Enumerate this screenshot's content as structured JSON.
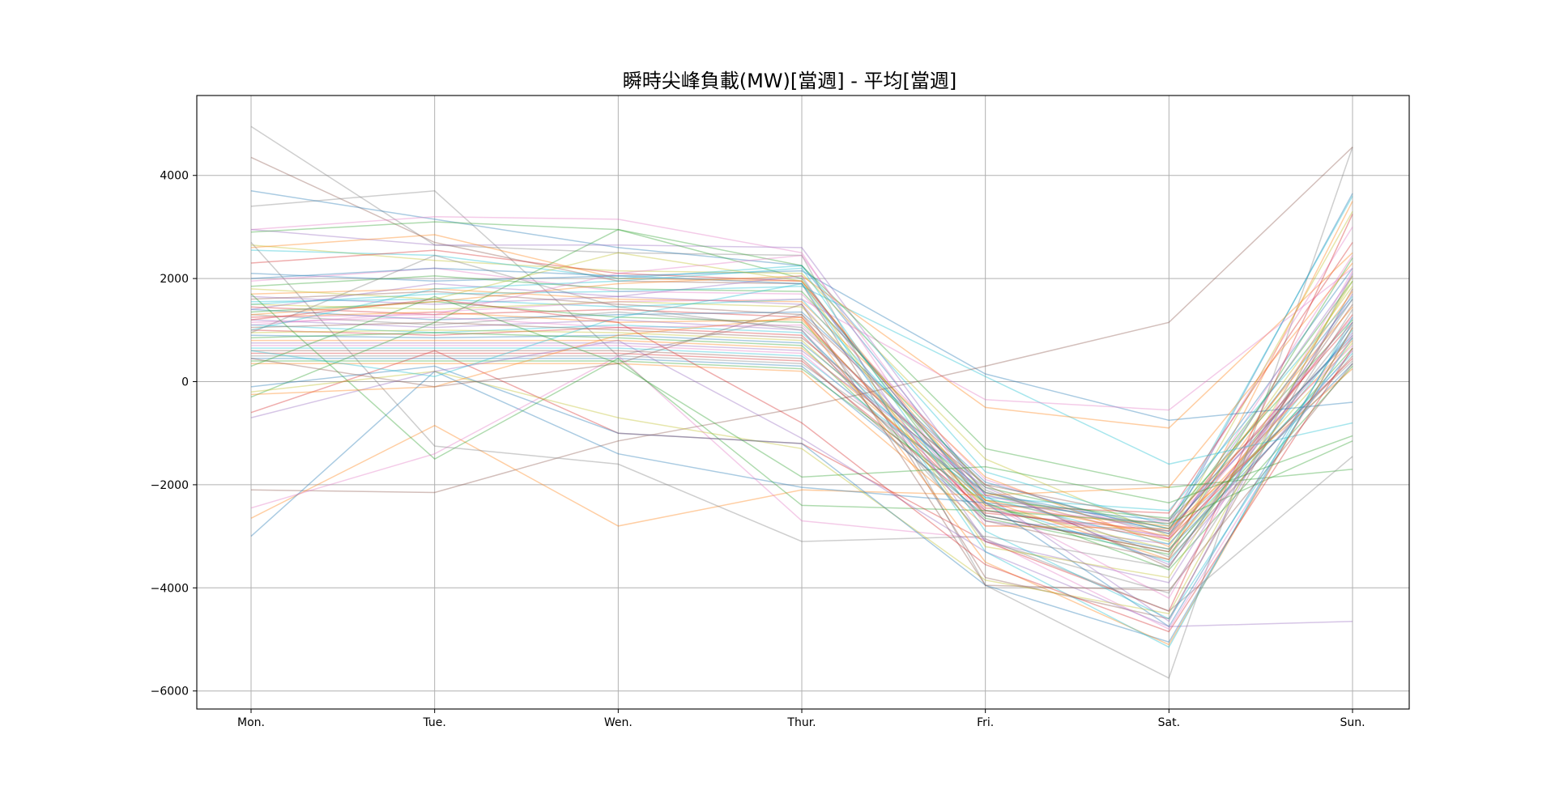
{
  "chart_data": {
    "type": "line",
    "title": "瞬時尖峰負載(MW)[當週] - 平均[當週]",
    "xlabel": "",
    "ylabel": "",
    "categories": [
      "Mon.",
      "Tue.",
      "Wen.",
      "Thur.",
      "Fri.",
      "Sat.",
      "Sun."
    ],
    "ylim": [
      -6350,
      5550
    ],
    "yticks": [
      4000,
      2000,
      0,
      -2000,
      -4000,
      -6000
    ],
    "ytick_labels": [
      "4000",
      "2000",
      "0",
      "−2000",
      "−4000",
      "−6000"
    ],
    "grid": true,
    "legend": "none",
    "series": [
      {
        "color": "#7f7f7f",
        "values": [
          4950,
          2650,
          2500,
          2450,
          -3950,
          -5750,
          4550
        ]
      },
      {
        "color": "#8c564b",
        "values": [
          4350,
          2700,
          1950,
          1900,
          -3800,
          -4600,
          1800
        ]
      },
      {
        "color": "#7f7f7f",
        "values": [
          3400,
          3700,
          500,
          1300,
          -3100,
          -4100,
          1400
        ]
      },
      {
        "color": "#1f77b4",
        "values": [
          3700,
          3150,
          2600,
          2250,
          -2200,
          -2900,
          3650
        ]
      },
      {
        "color": "#e377c2",
        "values": [
          2950,
          3200,
          3150,
          2500,
          -2800,
          -2700,
          3000
        ]
      },
      {
        "color": "#9467bd",
        "values": [
          2950,
          2650,
          2650,
          2600,
          -2200,
          -4650,
          2100
        ]
      },
      {
        "color": "#2ca02c",
        "values": [
          2900,
          3100,
          2950,
          2000,
          -2600,
          -3300,
          2400
        ]
      },
      {
        "color": "#bcbd22",
        "values": [
          2650,
          2350,
          2150,
          2100,
          -1500,
          -3000,
          3300
        ]
      },
      {
        "color": "#ff7f0e",
        "values": [
          2600,
          2850,
          2000,
          1950,
          -2300,
          -3450,
          3500
        ]
      },
      {
        "color": "#17becf",
        "values": [
          2550,
          2450,
          2000,
          2250,
          -1750,
          -2800,
          3600
        ]
      },
      {
        "color": "#d62728",
        "values": [
          2300,
          2550,
          2100,
          1950,
          -2400,
          -2550,
          2700
        ]
      },
      {
        "color": "#1f77b4",
        "values": [
          2100,
          1950,
          2050,
          1900,
          -2350,
          -2700,
          2200
        ]
      },
      {
        "color": "#e377c2",
        "values": [
          1950,
          2200,
          1750,
          1700,
          -1900,
          -3050,
          2450
        ]
      },
      {
        "color": "#2ca02c",
        "values": [
          1850,
          2050,
          1800,
          1750,
          -2050,
          -2850,
          1950
        ]
      },
      {
        "color": "#ff7f0e",
        "values": [
          1700,
          1800,
          1600,
          1550,
          -1850,
          -3200,
          1750
        ]
      },
      {
        "color": "#9467bd",
        "values": [
          1650,
          1500,
          1650,
          1500,
          -2500,
          -3000,
          2050
        ]
      },
      {
        "color": "#8c564b",
        "values": [
          1600,
          1750,
          1500,
          1300,
          -2000,
          -3600,
          1500
        ]
      },
      {
        "color": "#17becf",
        "values": [
          1550,
          1600,
          1450,
          1600,
          -2250,
          -2500,
          1650
        ]
      },
      {
        "color": "#bcbd22",
        "values": [
          1500,
          1400,
          1550,
          1450,
          -2150,
          -3100,
          1850
        ]
      },
      {
        "color": "#d62728",
        "values": [
          1450,
          1300,
          1400,
          1250,
          -2600,
          -3300,
          1300
        ]
      },
      {
        "color": "#1f77b4",
        "values": [
          1400,
          1200,
          1300,
          1350,
          -1950,
          -2950,
          1600
        ]
      },
      {
        "color": "#2ca02c",
        "values": [
          1350,
          1550,
          1250,
          1150,
          -2300,
          -2650,
          1200
        ]
      },
      {
        "color": "#7f7f7f",
        "values": [
          1300,
          1100,
          1350,
          1050,
          -2100,
          -3400,
          1100
        ]
      },
      {
        "color": "#ff7f0e",
        "values": [
          1250,
          1350,
          1150,
          1200,
          -2450,
          -2800,
          1450
        ]
      },
      {
        "color": "#9467bd",
        "values": [
          1200,
          1050,
          1200,
          1000,
          -2700,
          -3150,
          950
        ]
      },
      {
        "color": "#e377c2",
        "values": [
          1150,
          1250,
          1050,
          1100,
          -2200,
          -3050,
          1250
        ]
      },
      {
        "color": "#17becf",
        "values": [
          1100,
          950,
          1100,
          950,
          -2350,
          -3500,
          1000
        ]
      },
      {
        "color": "#8c564b",
        "values": [
          1050,
          1150,
          1000,
          850,
          -2000,
          -2700,
          850
        ]
      },
      {
        "color": "#d62728",
        "values": [
          1000,
          900,
          1050,
          900,
          -2550,
          -2900,
          1150
        ]
      },
      {
        "color": "#bcbd22",
        "values": [
          950,
          1000,
          950,
          800,
          -2400,
          -3250,
          750
        ]
      },
      {
        "color": "#1f77b4",
        "values": [
          900,
          850,
          900,
          750,
          -2150,
          -2850,
          900
        ]
      },
      {
        "color": "#2ca02c",
        "values": [
          850,
          950,
          850,
          700,
          -2650,
          -3350,
          650
        ]
      },
      {
        "color": "#ff7f0e",
        "values": [
          800,
          800,
          800,
          650,
          -2300,
          -3000,
          800
        ]
      },
      {
        "color": "#9467bd",
        "values": [
          750,
          750,
          750,
          600,
          -2050,
          -3550,
          600
        ]
      },
      {
        "color": "#e377c2",
        "values": [
          700,
          700,
          700,
          550,
          -2450,
          -2750,
          700
        ]
      },
      {
        "color": "#17becf",
        "values": [
          650,
          650,
          650,
          500,
          -2250,
          -3150,
          550
        ]
      },
      {
        "color": "#8c564b",
        "values": [
          600,
          600,
          600,
          450,
          -2700,
          -3450,
          500
        ]
      },
      {
        "color": "#d62728",
        "values": [
          550,
          550,
          550,
          400,
          -2500,
          -3050,
          450
        ]
      },
      {
        "color": "#7f7f7f",
        "values": [
          500,
          500,
          500,
          350,
          -2150,
          -2950,
          400
        ]
      },
      {
        "color": "#1f77b4",
        "values": [
          450,
          450,
          450,
          300,
          -2600,
          -3250,
          350
        ]
      },
      {
        "color": "#2ca02c",
        "values": [
          400,
          400,
          400,
          250,
          -2350,
          -3650,
          300
        ]
      },
      {
        "color": "#ff7f0e",
        "values": [
          350,
          350,
          350,
          200,
          -2800,
          -2850,
          250
        ]
      },
      {
        "color": "#1f77b4",
        "values": [
          2000,
          2200,
          2050,
          2150,
          150,
          -750,
          -400
        ]
      },
      {
        "color": "#17becf",
        "values": [
          1500,
          1700,
          1750,
          1850,
          100,
          -1600,
          -800
        ]
      },
      {
        "color": "#ff7f0e",
        "values": [
          1300,
          1550,
          1900,
          2050,
          -500,
          -900,
          2500
        ]
      },
      {
        "color": "#e377c2",
        "values": [
          1100,
          1350,
          1550,
          1600,
          -350,
          -550,
          2200
        ]
      },
      {
        "color": "#2ca02c",
        "values": [
          -300,
          1150,
          2950,
          2250,
          -1300,
          -2050,
          -1700
        ]
      },
      {
        "color": "#8c564b",
        "values": [
          -2100,
          -2150,
          -1150,
          -500,
          300,
          1150,
          4550
        ]
      },
      {
        "color": "#ff7f0e",
        "values": [
          -2650,
          -850,
          -2800,
          -2100,
          -2200,
          -2050,
          2300
        ]
      },
      {
        "color": "#1f77b4",
        "values": [
          -3000,
          200,
          -1400,
          -2050,
          -2350,
          -4750,
          1150
        ]
      },
      {
        "color": "#e377c2",
        "values": [
          -2450,
          -1400,
          500,
          -2700,
          -3050,
          -4800,
          900
        ]
      },
      {
        "color": "#2ca02c",
        "values": [
          1700,
          -1500,
          450,
          -2400,
          -2500,
          -2750,
          -1150
        ]
      },
      {
        "color": "#7f7f7f",
        "values": [
          2700,
          -1250,
          -1600,
          -3100,
          -3000,
          -3600,
          1600
        ]
      },
      {
        "color": "#d62728",
        "values": [
          -600,
          600,
          -1000,
          -1200,
          -3100,
          -4450,
          3250
        ]
      },
      {
        "color": "#bcbd22",
        "values": [
          -200,
          200,
          -700,
          -1300,
          -3850,
          -4500,
          2050
        ]
      },
      {
        "color": "#1f77b4",
        "values": [
          -100,
          300,
          -1000,
          -1200,
          -3950,
          -5050,
          1050
        ]
      },
      {
        "color": "#9467bd",
        "values": [
          -700,
          200,
          800,
          -1100,
          -3300,
          -4750,
          -4650
        ]
      },
      {
        "color": "#ff7f0e",
        "values": [
          -250,
          -100,
          900,
          1250,
          -3500,
          -5100,
          1050
        ]
      },
      {
        "color": "#17becf",
        "values": [
          600,
          100,
          1250,
          1900,
          -3300,
          -5150,
          1250
        ]
      },
      {
        "color": "#8c564b",
        "values": [
          450,
          -100,
          350,
          1500,
          -3950,
          -4050,
          350
        ]
      },
      {
        "color": "#2ca02c",
        "values": [
          300,
          1650,
          350,
          -1850,
          -1650,
          -2350,
          -1050
        ]
      },
      {
        "color": "#7f7f7f",
        "values": [
          950,
          2450,
          1450,
          1000,
          -3050,
          -4450,
          -1450
        ]
      },
      {
        "color": "#d62728",
        "values": [
          1200,
          1600,
          1150,
          -800,
          -3550,
          -4850,
          650
        ]
      },
      {
        "color": "#9467bd",
        "values": [
          1400,
          1900,
          1650,
          2050,
          -3100,
          -3900,
          1700
        ]
      },
      {
        "color": "#17becf",
        "values": [
          1000,
          1800,
          1950,
          2200,
          -2900,
          -4600,
          850
        ]
      },
      {
        "color": "#bcbd22",
        "values": [
          1800,
          1600,
          2500,
          1950,
          -3200,
          -3800,
          1950
        ]
      },
      {
        "color": "#e377c2",
        "values": [
          1250,
          1300,
          2100,
          2450,
          -2350,
          -4200,
          2150
        ]
      }
    ]
  }
}
